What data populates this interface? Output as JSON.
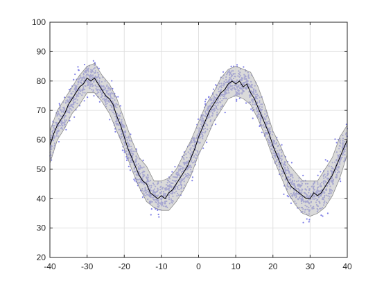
{
  "chart_data": {
    "type": "scatter",
    "title": "",
    "xlabel": "",
    "ylabel": "",
    "xlim": [
      -40,
      40
    ],
    "ylim": [
      20,
      100
    ],
    "xticks": [
      -40,
      -30,
      -20,
      -10,
      0,
      10,
      20,
      30,
      40
    ],
    "yticks": [
      20,
      30,
      40,
      50,
      60,
      70,
      80,
      90,
      100
    ],
    "grid": true,
    "legend": "none",
    "colors": {
      "points": "#7f7fe6",
      "band_fill": "#c2c2c2",
      "band_edge": "#8c8c8c",
      "mean_line": "#000000",
      "grid": "#e0e0e0",
      "axis": "#262626"
    },
    "series": [
      {
        "type": "line",
        "x": [
          -40,
          -39,
          -38,
          -37,
          -36,
          -35,
          -34,
          -33,
          -32,
          -31,
          -30,
          -29,
          -28,
          -27,
          -26,
          -25,
          -24,
          -23,
          -22,
          -21,
          -20,
          -19,
          -18,
          -17,
          -16,
          -15,
          -14,
          -13,
          -12,
          -11,
          -10,
          -9,
          -8,
          -7,
          -6,
          -5,
          -4,
          -3,
          -2,
          -1,
          0,
          1,
          2,
          3,
          4,
          5,
          6,
          7,
          8,
          9,
          10,
          11,
          12,
          13,
          14,
          15,
          16,
          17,
          18,
          19,
          20,
          21,
          22,
          23,
          24,
          25,
          26,
          27,
          28,
          29,
          30,
          31,
          32,
          33,
          34,
          35,
          36,
          37,
          38,
          39,
          40
        ],
        "y": [
          58,
          62,
          65,
          67,
          69,
          72,
          74,
          76,
          78,
          79,
          81,
          80,
          81,
          79,
          77,
          75,
          74,
          72,
          68,
          65,
          61,
          57,
          54,
          51,
          48,
          46,
          45,
          42,
          41,
          40,
          41,
          40,
          42,
          43,
          45,
          47,
          49,
          51,
          54,
          57,
          61,
          64,
          67,
          70,
          72,
          74,
          76,
          77,
          79,
          80,
          79,
          80,
          78,
          79,
          76,
          74,
          71,
          68,
          65,
          62,
          58,
          55,
          52,
          49,
          46,
          44,
          43,
          42,
          41,
          40,
          40,
          42,
          41,
          42,
          44,
          46,
          48,
          51,
          54,
          57,
          60
        ]
      },
      {
        "type": "band",
        "x": [
          -40,
          -38,
          -36,
          -34,
          -32,
          -30,
          -28,
          -26,
          -24,
          -22,
          -20,
          -18,
          -16,
          -14,
          -12,
          -10,
          -8,
          -6,
          -4,
          -2,
          0,
          2,
          4,
          6,
          8,
          10,
          12,
          14,
          16,
          18,
          20,
          22,
          24,
          26,
          28,
          30,
          32,
          34,
          36,
          38,
          40
        ],
        "upper": [
          63,
          70,
          74,
          78,
          82,
          85,
          86,
          82,
          79,
          74,
          67,
          60,
          54,
          51,
          46,
          46,
          47,
          50,
          55,
          60,
          66,
          72,
          76,
          81,
          84,
          85,
          84,
          83,
          78,
          71,
          63,
          58,
          52,
          49,
          46,
          46,
          46,
          50,
          54,
          61,
          65
        ],
        "lower": [
          52,
          60,
          64,
          69,
          72,
          76,
          76,
          73,
          69,
          63,
          57,
          50,
          44,
          39,
          37,
          36,
          36,
          39,
          43,
          48,
          55,
          60,
          66,
          70,
          74,
          75,
          74,
          72,
          67,
          61,
          54,
          48,
          42,
          38,
          35,
          34,
          35,
          37,
          41,
          47,
          55
        ]
      }
    ]
  }
}
